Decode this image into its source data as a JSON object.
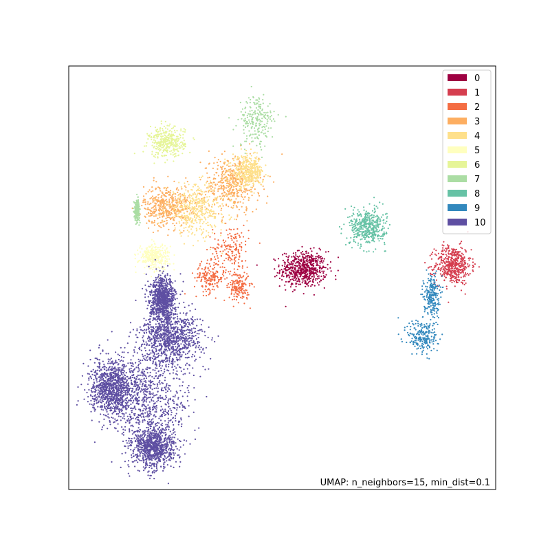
{
  "chart_data": {
    "type": "scatter",
    "title": "",
    "xlabel": "",
    "ylabel": "",
    "axis_ticks": "hidden",
    "xlim": [
      0,
      10
    ],
    "ylim": [
      0,
      10
    ],
    "legend_placement": "top-right",
    "annotation": "UMAP: n_neighbors=15, min_dist=0.1",
    "clusters": [
      {
        "label": "0",
        "color": "#9e0142",
        "count": 600,
        "centers": [
          [
            5.5,
            5.2,
            0.45,
            0.35
          ]
        ]
      },
      {
        "label": "1",
        "color": "#d53e4f",
        "count": 500,
        "centers": [
          [
            9.0,
            5.3,
            0.35,
            0.38
          ]
        ]
      },
      {
        "label": "2",
        "color": "#f46d43",
        "count": 500,
        "centers": [
          [
            3.8,
            5.7,
            0.35,
            0.45
          ],
          [
            3.3,
            5.0,
            0.3,
            0.3
          ],
          [
            4.0,
            4.8,
            0.2,
            0.3
          ]
        ]
      },
      {
        "label": "3",
        "color": "#fdae61",
        "count": 900,
        "centers": [
          [
            2.3,
            6.7,
            0.45,
            0.4
          ],
          [
            3.8,
            7.2,
            0.55,
            0.55
          ]
        ]
      },
      {
        "label": "4",
        "color": "#fee08b",
        "count": 800,
        "centers": [
          [
            3.0,
            6.6,
            0.6,
            0.5
          ],
          [
            4.2,
            7.5,
            0.3,
            0.3
          ]
        ]
      },
      {
        "label": "5",
        "color": "#ffffbf",
        "count": 300,
        "centers": [
          [
            2.0,
            5.5,
            0.3,
            0.25
          ]
        ]
      },
      {
        "label": "6",
        "color": "#e6f598",
        "count": 350,
        "centers": [
          [
            2.3,
            8.2,
            0.35,
            0.3
          ]
        ]
      },
      {
        "label": "7",
        "color": "#abdda4",
        "count": 450,
        "centers": [
          [
            4.4,
            8.7,
            0.35,
            0.5
          ],
          [
            1.6,
            6.6,
            0.05,
            0.2
          ]
        ]
      },
      {
        "label": "8",
        "color": "#66c2a5",
        "count": 450,
        "centers": [
          [
            7.0,
            6.2,
            0.35,
            0.35
          ]
        ]
      },
      {
        "label": "9",
        "color": "#3288bd",
        "count": 450,
        "centers": [
          [
            8.3,
            3.6,
            0.3,
            0.35
          ],
          [
            8.5,
            4.6,
            0.15,
            0.4
          ]
        ]
      },
      {
        "label": "10",
        "color": "#5e4fa2",
        "count": 4500,
        "centers": [
          [
            1.8,
            2.2,
            0.9,
            1.0
          ],
          [
            1.0,
            2.4,
            0.4,
            0.5
          ],
          [
            2.4,
            3.6,
            0.6,
            0.5
          ],
          [
            2.2,
            4.5,
            0.25,
            0.4
          ],
          [
            2.0,
            1.0,
            0.4,
            0.4
          ]
        ]
      }
    ],
    "legend": [
      "0",
      "1",
      "2",
      "3",
      "4",
      "5",
      "6",
      "7",
      "8",
      "9",
      "10"
    ]
  }
}
